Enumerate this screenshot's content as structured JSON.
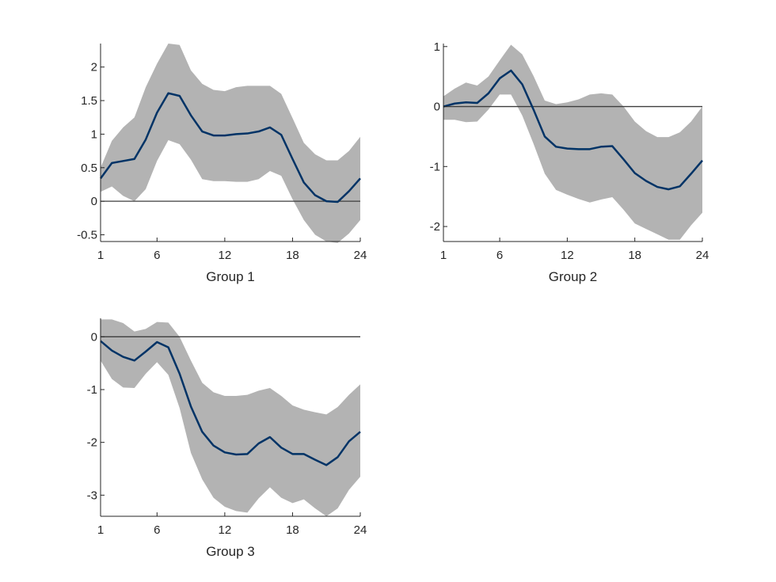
{
  "chart_data": [
    {
      "type": "line",
      "title": "",
      "xlabel": "Group 1",
      "ylabel": "",
      "xlim": [
        1,
        24
      ],
      "ylim": [
        -0.6,
        2.35
      ],
      "xticks": [
        1,
        6,
        12,
        18,
        24
      ],
      "yticks": [
        -0.5,
        0,
        0.5,
        1,
        1.5,
        2
      ],
      "ytick_labels": [
        "-0.5",
        "0",
        "0.5",
        "1",
        "1.5",
        "2"
      ],
      "zero_line": true,
      "grid": false,
      "x": [
        1,
        2,
        3,
        4,
        5,
        6,
        7,
        8,
        9,
        10,
        11,
        12,
        13,
        14,
        15,
        16,
        17,
        18,
        19,
        20,
        21,
        22,
        23,
        24
      ],
      "series": [
        {
          "values": [
            0.34,
            0.57,
            0.6,
            0.63,
            0.92,
            1.32,
            1.61,
            1.57,
            1.28,
            1.04,
            0.98,
            0.98,
            1.0,
            1.01,
            1.04,
            1.1,
            0.99,
            0.63,
            0.28,
            0.09,
            0.0,
            -0.01,
            0.15,
            0.34
          ],
          "lower": [
            0.14,
            0.22,
            0.08,
            0.0,
            0.18,
            0.6,
            0.91,
            0.85,
            0.62,
            0.33,
            0.3,
            0.3,
            0.29,
            0.29,
            0.33,
            0.45,
            0.38,
            0.03,
            -0.28,
            -0.5,
            -0.6,
            -0.62,
            -0.48,
            -0.28
          ],
          "upper": [
            0.5,
            0.9,
            1.1,
            1.25,
            1.7,
            2.05,
            2.35,
            2.33,
            1.95,
            1.75,
            1.66,
            1.64,
            1.7,
            1.72,
            1.72,
            1.72,
            1.6,
            1.24,
            0.87,
            0.7,
            0.61,
            0.61,
            0.75,
            0.96
          ],
          "color": "#003366",
          "band_color": "#b3b3b3"
        }
      ]
    },
    {
      "type": "line",
      "title": "",
      "xlabel": "Group 2",
      "ylabel": "",
      "xlim": [
        1,
        24
      ],
      "ylim": [
        -2.25,
        1.05
      ],
      "xticks": [
        1,
        6,
        12,
        18,
        24
      ],
      "yticks": [
        -2,
        -1,
        0,
        1
      ],
      "ytick_labels": [
        "-2",
        "-1",
        "0",
        "1"
      ],
      "zero_line": true,
      "grid": false,
      "x": [
        1,
        2,
        3,
        4,
        5,
        6,
        7,
        8,
        9,
        10,
        11,
        12,
        13,
        14,
        15,
        16,
        17,
        18,
        19,
        20,
        21,
        22,
        23,
        24
      ],
      "series": [
        {
          "values": [
            0.0,
            0.05,
            0.07,
            0.06,
            0.22,
            0.47,
            0.6,
            0.37,
            -0.05,
            -0.5,
            -0.67,
            -0.7,
            -0.71,
            -0.71,
            -0.67,
            -0.66,
            -0.88,
            -1.11,
            -1.24,
            -1.34,
            -1.38,
            -1.33,
            -1.12,
            -0.9
          ],
          "lower": [
            -0.22,
            -0.22,
            -0.26,
            -0.25,
            -0.05,
            0.2,
            0.2,
            -0.15,
            -0.62,
            -1.12,
            -1.39,
            -1.47,
            -1.54,
            -1.6,
            -1.55,
            -1.51,
            -1.72,
            -1.95,
            -2.04,
            -2.13,
            -2.22,
            -2.22,
            -1.98,
            -1.77
          ],
          "upper": [
            0.17,
            0.3,
            0.4,
            0.35,
            0.5,
            0.77,
            1.03,
            0.87,
            0.51,
            0.1,
            0.04,
            0.07,
            0.12,
            0.2,
            0.22,
            0.2,
            0.0,
            -0.25,
            -0.41,
            -0.51,
            -0.51,
            -0.43,
            -0.25,
            0.0
          ],
          "color": "#003366",
          "band_color": "#b3b3b3"
        }
      ]
    },
    {
      "type": "line",
      "title": "",
      "xlabel": "Group 3",
      "ylabel": "",
      "xlim": [
        1,
        24
      ],
      "ylim": [
        -3.4,
        0.35
      ],
      "xticks": [
        1,
        6,
        12,
        18,
        24
      ],
      "yticks": [
        -3,
        -2,
        -1,
        0
      ],
      "ytick_labels": [
        "-3",
        "-2",
        "-1",
        "0"
      ],
      "zero_line": true,
      "grid": false,
      "x": [
        1,
        2,
        3,
        4,
        5,
        6,
        7,
        8,
        9,
        10,
        11,
        12,
        13,
        14,
        15,
        16,
        17,
        18,
        19,
        20,
        21,
        22,
        23,
        24
      ],
      "series": [
        {
          "values": [
            -0.08,
            -0.26,
            -0.38,
            -0.45,
            -0.28,
            -0.1,
            -0.2,
            -0.7,
            -1.32,
            -1.8,
            -2.06,
            -2.19,
            -2.23,
            -2.22,
            -2.02,
            -1.9,
            -2.1,
            -2.22,
            -2.22,
            -2.33,
            -2.43,
            -2.28,
            -1.98,
            -1.8
          ],
          "lower": [
            -0.45,
            -0.8,
            -0.96,
            -0.97,
            -0.7,
            -0.48,
            -0.72,
            -1.35,
            -2.2,
            -2.7,
            -3.05,
            -3.22,
            -3.3,
            -3.33,
            -3.06,
            -2.85,
            -3.05,
            -3.15,
            -3.08,
            -3.25,
            -3.4,
            -3.25,
            -2.9,
            -2.65
          ],
          "upper": [
            0.33,
            0.33,
            0.26,
            0.1,
            0.15,
            0.28,
            0.27,
            0.0,
            -0.45,
            -0.87,
            -1.05,
            -1.12,
            -1.12,
            -1.1,
            -1.02,
            -0.97,
            -1.12,
            -1.3,
            -1.38,
            -1.43,
            -1.47,
            -1.33,
            -1.1,
            -0.9
          ],
          "color": "#003366",
          "band_color": "#b3b3b3"
        }
      ]
    }
  ]
}
